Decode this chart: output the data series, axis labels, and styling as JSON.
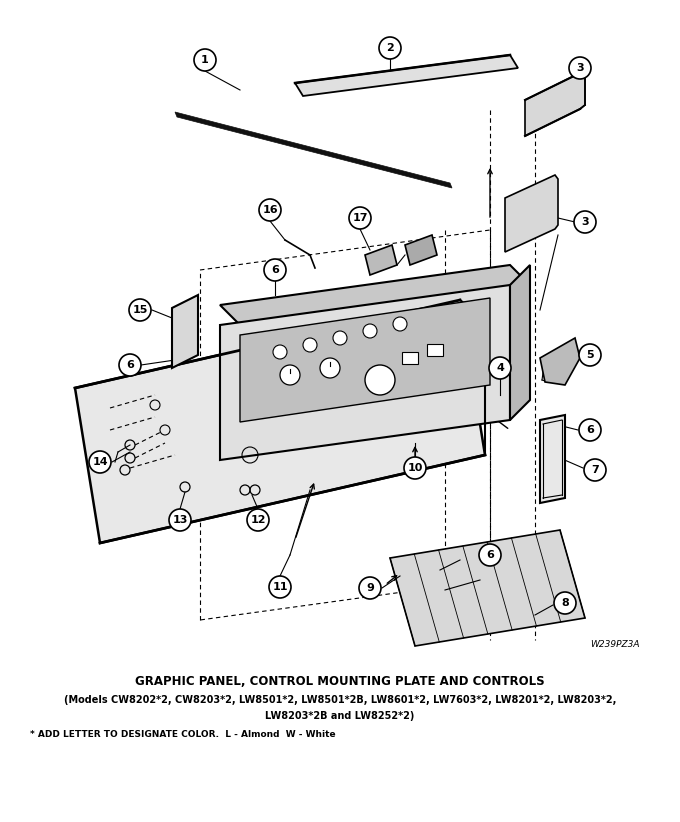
{
  "title_main": "GRAPHIC PANEL, CONTROL MOUNTING PLATE AND CONTROLS",
  "title_sub1": "(Models CW8202*2, CW8203*2, LW8501*2, LW8501*2B, LW8601*2, LW7603*2, LW8201*2, LW8203*2,",
  "title_sub2": "LW8203*2B and LW8252*2)",
  "footnote": "* ADD LETTER TO DESIGNATE COLOR.  L - Almond  W - White",
  "watermark": "W239PZ3A",
  "bg_color": "#ffffff"
}
